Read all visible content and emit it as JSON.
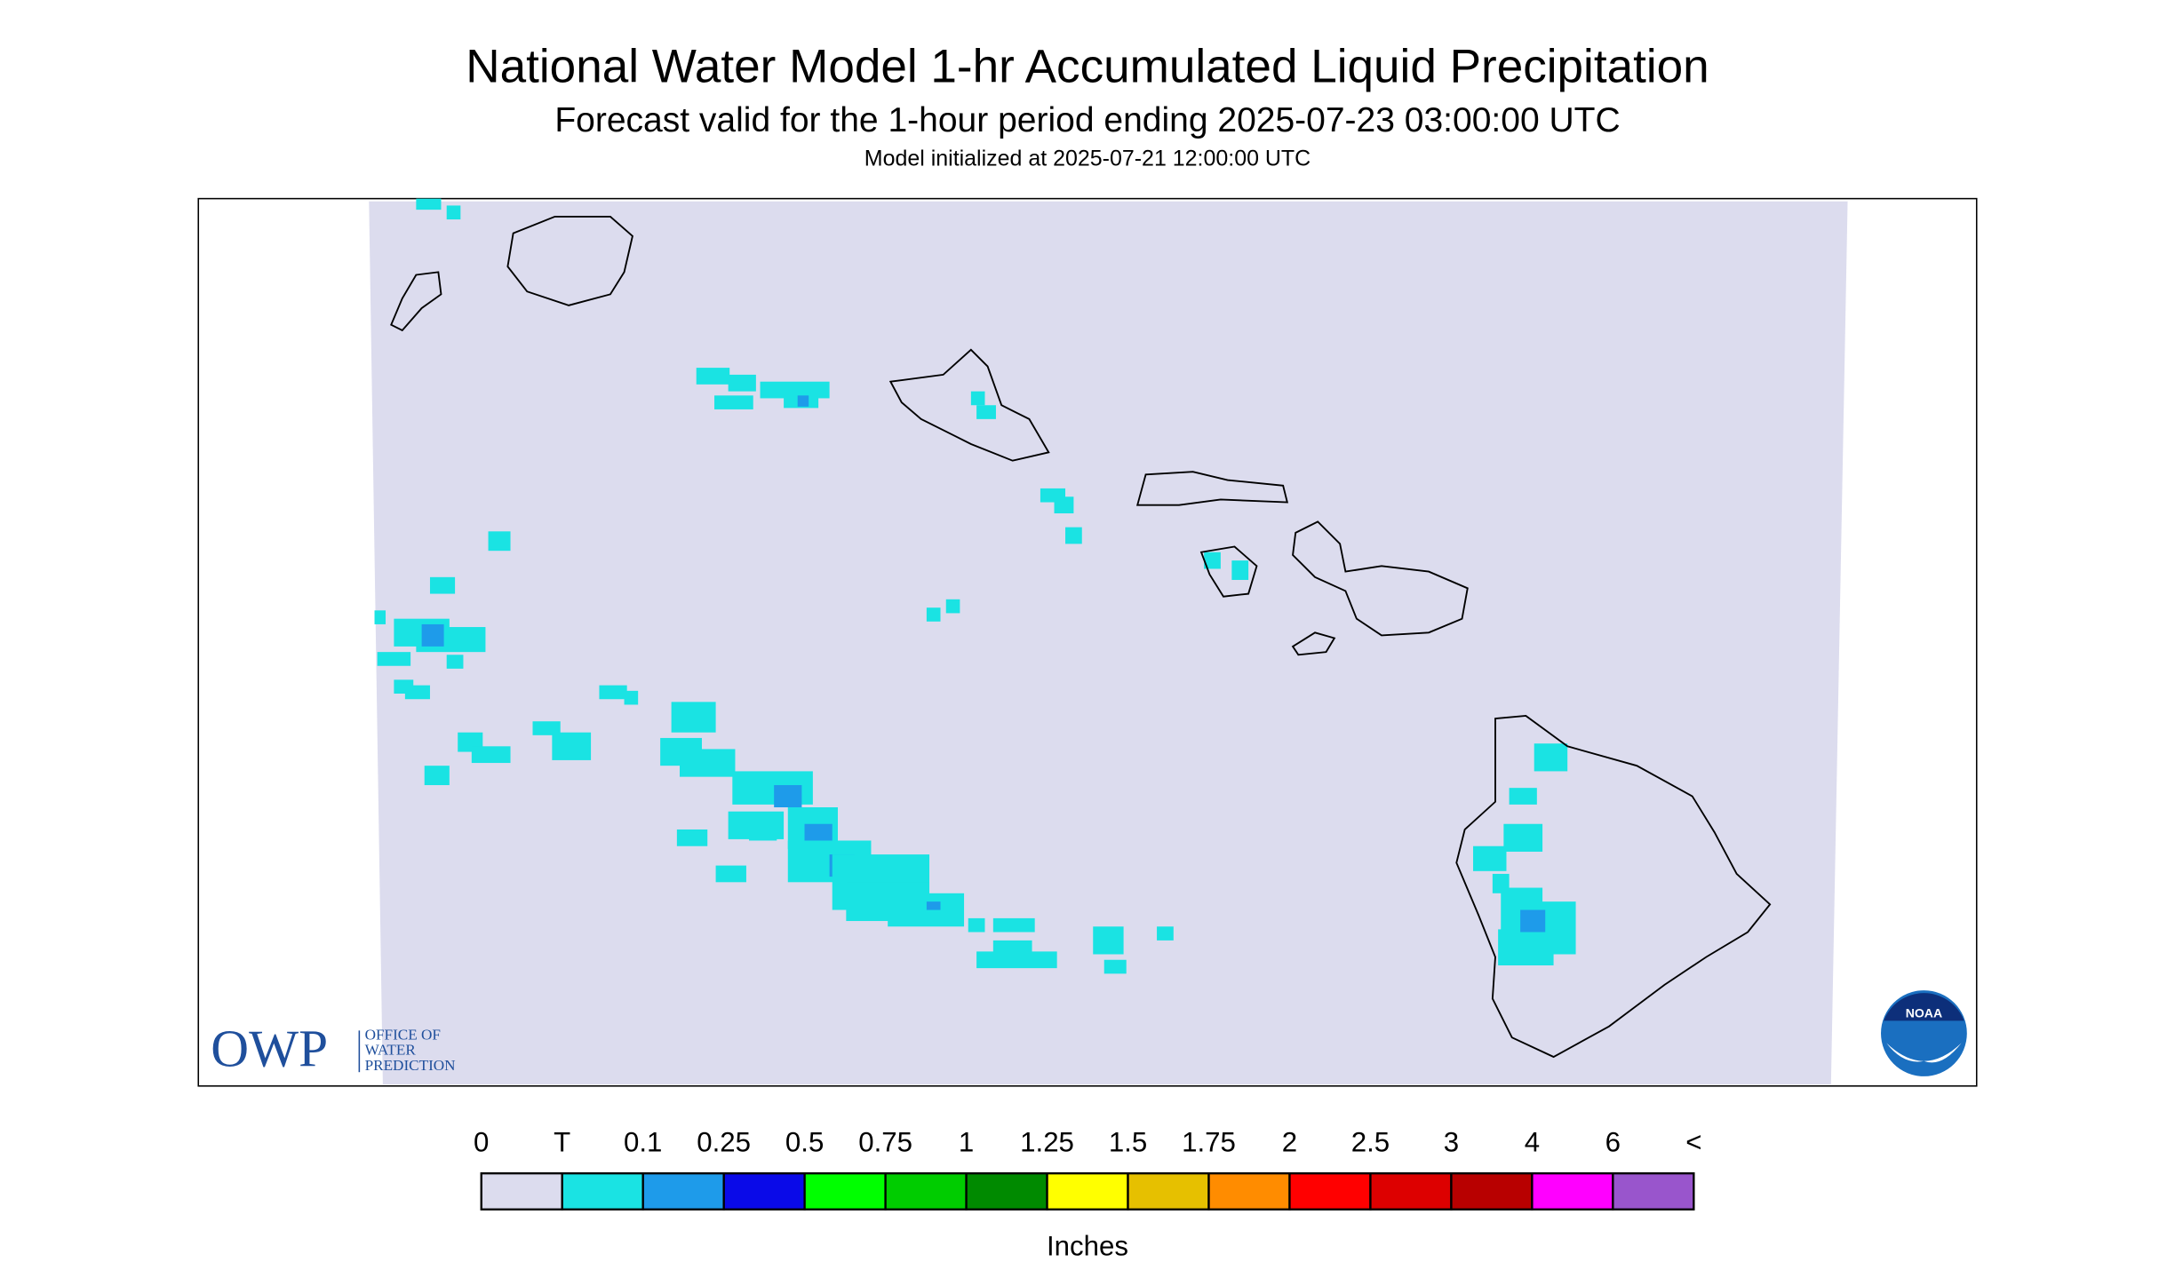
{
  "header": {
    "title": "National Water Model 1-hr Accumulated Liquid Precipitation",
    "subtitle": "Forecast valid for the 1-hour period ending 2025-07-23 03:00:00 UTC",
    "init": "Model initialized at 2025-07-21 12:00:00 UTC"
  },
  "legend": {
    "labels": [
      "0",
      "T",
      "0.1",
      "0.25",
      "0.5",
      "0.75",
      "1",
      "1.25",
      "1.5",
      "1.75",
      "2",
      "2.5",
      "3",
      "4",
      "6",
      "<"
    ],
    "colors": [
      "#dcdcee",
      "#1ae3e3",
      "#1e9bea",
      "#0a0ae8",
      "#00ff00",
      "#00cc00",
      "#008a00",
      "#ffff00",
      "#e6c000",
      "#ff8c00",
      "#ff0000",
      "#dd0000",
      "#b80000",
      "#ff00ff",
      "#9955cc"
    ],
    "unit": "Inches"
  },
  "logos": {
    "owp": "OWP",
    "owp_lines": [
      "OFFICE OF",
      "WATER",
      "PREDICTION"
    ],
    "noaa": "NOAA"
  }
}
